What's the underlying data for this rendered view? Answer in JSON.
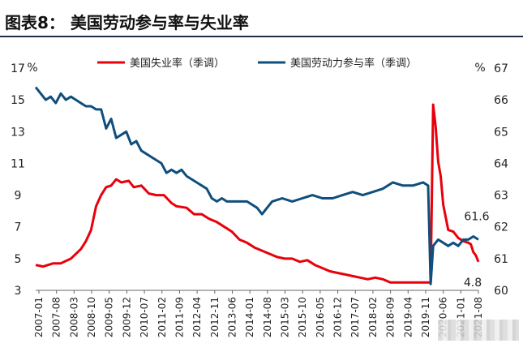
{
  "header": {
    "title": "图表8：    美国劳动参与率与失业率"
  },
  "chart_data": {
    "type": "line",
    "y_left": {
      "unit": "%",
      "ticks": [
        "17",
        "15",
        "13",
        "11",
        "9",
        "7",
        "5",
        "3"
      ],
      "range": [
        3,
        17
      ]
    },
    "y_right": {
      "unit": "%",
      "ticks": [
        "67",
        "66",
        "65",
        "64",
        "63",
        "62",
        "61",
        "60"
      ],
      "range": [
        60,
        67
      ]
    },
    "x_ticks": [
      "2007-01",
      "2007-08",
      "2008-03",
      "2008-10",
      "2009-05",
      "2009-12",
      "2010-07",
      "2011-02",
      "2011-09",
      "2012-04",
      "2012-11",
      "2013-06",
      "2014-01",
      "2014-08",
      "2015-03",
      "2015-10",
      "2016-05",
      "2016-12",
      "2017-07",
      "2018-02",
      "2018-09",
      "2019-04",
      "2019-11",
      "2020-06",
      "2021-01",
      "2021-08"
    ],
    "series": [
      {
        "name": "美国失业率（季调）",
        "axis": "left",
        "color": "#e8000b",
        "points": [
          [
            0,
            4.6
          ],
          [
            3,
            4.5
          ],
          [
            7,
            4.7
          ],
          [
            10,
            4.7
          ],
          [
            14,
            5.0
          ],
          [
            18,
            5.6
          ],
          [
            20,
            6.1
          ],
          [
            22,
            6.8
          ],
          [
            24,
            8.3
          ],
          [
            26,
            9.0
          ],
          [
            28,
            9.5
          ],
          [
            30,
            9.6
          ],
          [
            32,
            10.0
          ],
          [
            34,
            9.8
          ],
          [
            37,
            9.9
          ],
          [
            39,
            9.5
          ],
          [
            42,
            9.6
          ],
          [
            45,
            9.1
          ],
          [
            48,
            9.0
          ],
          [
            51,
            9.0
          ],
          [
            54,
            8.5
          ],
          [
            56,
            8.3
          ],
          [
            60,
            8.2
          ],
          [
            63,
            7.8
          ],
          [
            66,
            7.8
          ],
          [
            69,
            7.5
          ],
          [
            72,
            7.3
          ],
          [
            75,
            7.0
          ],
          [
            78,
            6.7
          ],
          [
            81,
            6.2
          ],
          [
            84,
            6.0
          ],
          [
            87,
            5.7
          ],
          [
            90,
            5.5
          ],
          [
            93,
            5.3
          ],
          [
            96,
            5.1
          ],
          [
            99,
            5.0
          ],
          [
            102,
            5.0
          ],
          [
            105,
            4.8
          ],
          [
            108,
            4.9
          ],
          [
            111,
            4.6
          ],
          [
            114,
            4.4
          ],
          [
            117,
            4.2
          ],
          [
            120,
            4.1
          ],
          [
            123,
            4.0
          ],
          [
            126,
            3.9
          ],
          [
            129,
            3.8
          ],
          [
            132,
            3.7
          ],
          [
            135,
            3.8
          ],
          [
            138,
            3.7
          ],
          [
            141,
            3.5
          ],
          [
            145,
            3.5
          ],
          [
            157,
            3.5
          ],
          [
            158,
            14.7
          ],
          [
            159,
            13.3
          ],
          [
            160,
            11.1
          ],
          [
            161,
            10.2
          ],
          [
            162,
            8.4
          ],
          [
            164,
            6.8
          ],
          [
            166,
            6.7
          ],
          [
            168,
            6.3
          ],
          [
            170,
            6.1
          ],
          [
            172,
            6.0
          ],
          [
            173,
            5.9
          ],
          [
            174,
            5.4
          ],
          [
            175,
            5.2
          ],
          [
            176,
            4.8
          ]
        ]
      },
      {
        "name": "美国劳动力参与率（季调）",
        "axis": "right",
        "color": "#0f4e7d",
        "points": [
          [
            0,
            66.4
          ],
          [
            2,
            66.2
          ],
          [
            4,
            66.0
          ],
          [
            6,
            66.1
          ],
          [
            8,
            65.9
          ],
          [
            10,
            66.2
          ],
          [
            12,
            66.0
          ],
          [
            14,
            66.1
          ],
          [
            16,
            66.0
          ],
          [
            18,
            65.9
          ],
          [
            20,
            65.8
          ],
          [
            22,
            65.8
          ],
          [
            24,
            65.7
          ],
          [
            26,
            65.7
          ],
          [
            28,
            65.1
          ],
          [
            30,
            65.4
          ],
          [
            32,
            64.8
          ],
          [
            34,
            64.9
          ],
          [
            36,
            65.0
          ],
          [
            38,
            64.6
          ],
          [
            40,
            64.7
          ],
          [
            42,
            64.4
          ],
          [
            44,
            64.3
          ],
          [
            46,
            64.2
          ],
          [
            48,
            64.1
          ],
          [
            50,
            64.0
          ],
          [
            52,
            63.7
          ],
          [
            54,
            63.8
          ],
          [
            56,
            63.7
          ],
          [
            58,
            63.8
          ],
          [
            60,
            63.6
          ],
          [
            62,
            63.5
          ],
          [
            64,
            63.4
          ],
          [
            66,
            63.3
          ],
          [
            68,
            63.2
          ],
          [
            70,
            62.9
          ],
          [
            72,
            62.8
          ],
          [
            74,
            62.9
          ],
          [
            76,
            62.8
          ],
          [
            80,
            62.8
          ],
          [
            84,
            62.8
          ],
          [
            88,
            62.6
          ],
          [
            90,
            62.4
          ],
          [
            92,
            62.6
          ],
          [
            94,
            62.8
          ],
          [
            98,
            62.9
          ],
          [
            102,
            62.8
          ],
          [
            106,
            62.9
          ],
          [
            110,
            63.0
          ],
          [
            114,
            62.9
          ],
          [
            118,
            62.9
          ],
          [
            122,
            63.0
          ],
          [
            126,
            63.1
          ],
          [
            130,
            63.0
          ],
          [
            134,
            63.1
          ],
          [
            138,
            63.2
          ],
          [
            142,
            63.4
          ],
          [
            146,
            63.3
          ],
          [
            150,
            63.3
          ],
          [
            154,
            63.4
          ],
          [
            156,
            63.3
          ],
          [
            157,
            60.2
          ],
          [
            158,
            61.4
          ],
          [
            160,
            61.6
          ],
          [
            162,
            61.5
          ],
          [
            164,
            61.4
          ],
          [
            166,
            61.5
          ],
          [
            168,
            61.4
          ],
          [
            170,
            61.6
          ],
          [
            172,
            61.6
          ],
          [
            174,
            61.7
          ],
          [
            176,
            61.6
          ]
        ]
      }
    ],
    "annotations": [
      {
        "text": "61.6"
      },
      {
        "text": "4.8"
      }
    ]
  }
}
